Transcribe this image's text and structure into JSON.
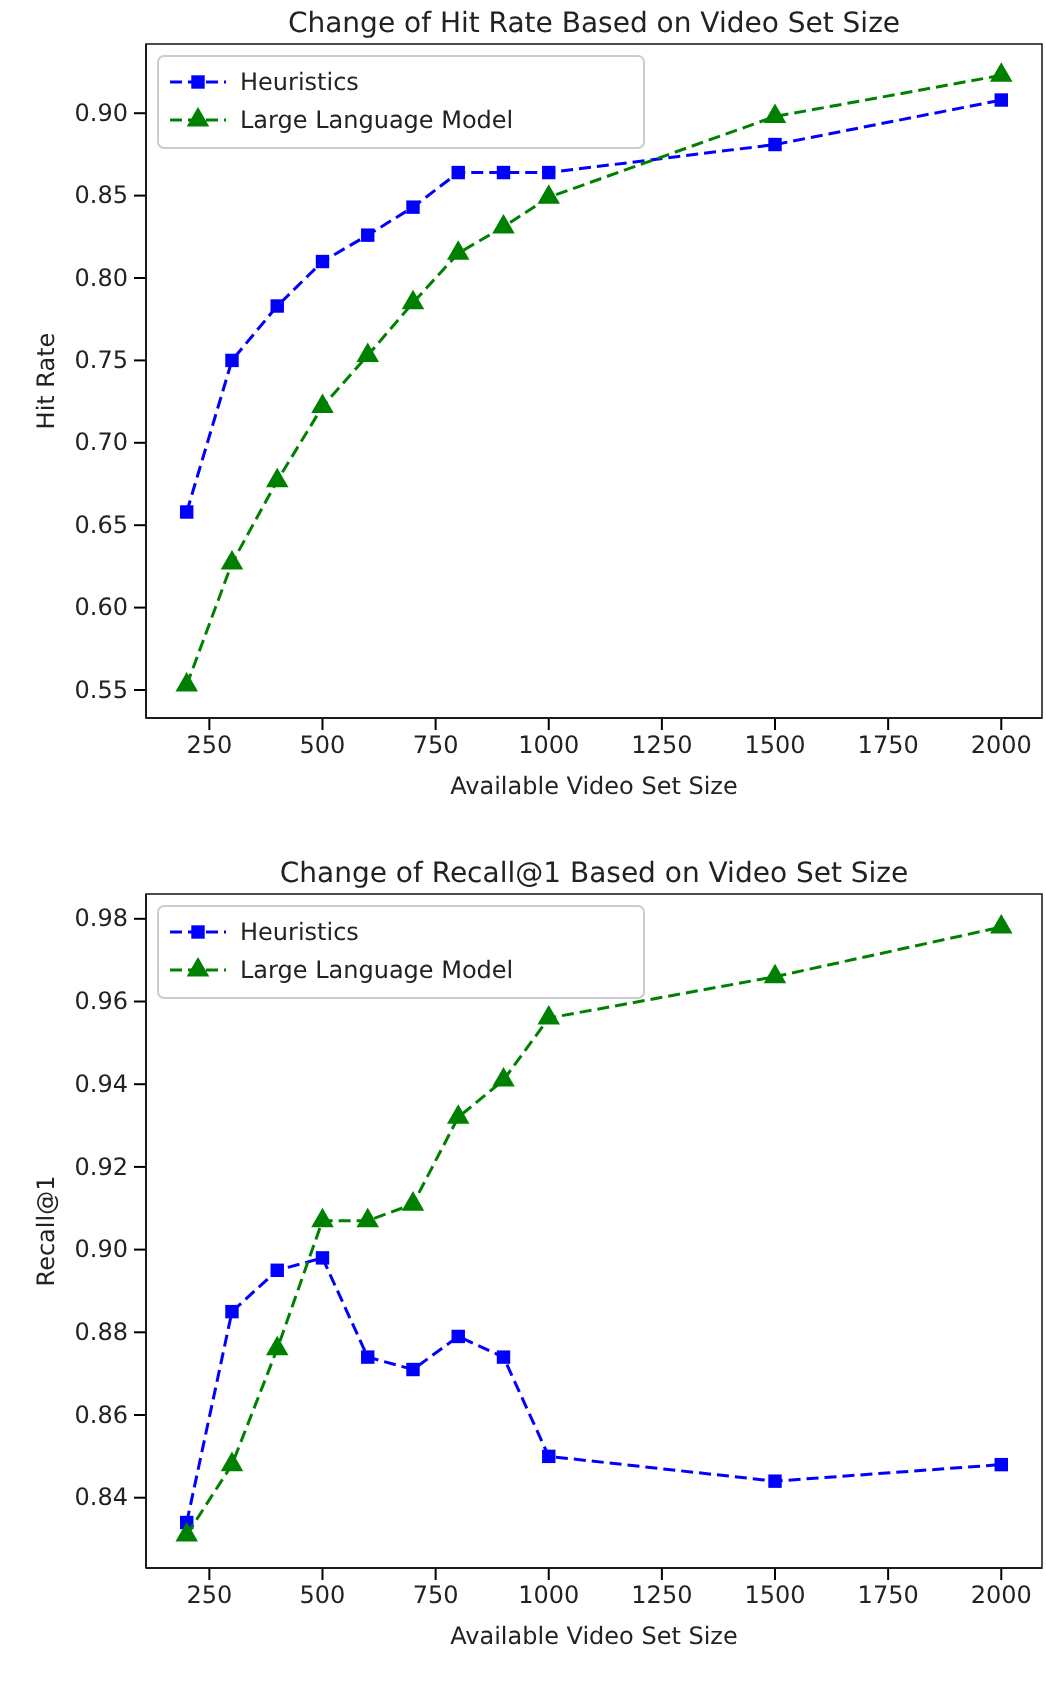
{
  "chart_data": [
    {
      "type": "line",
      "title": "Change of Hit Rate Based on Video Set Size",
      "xlabel": "Available Video Set Size",
      "ylabel": "Hit Rate",
      "x": [
        200,
        300,
        400,
        500,
        600,
        700,
        800,
        900,
        1000,
        1500,
        2000
      ],
      "series": [
        {
          "name": "Heuristics",
          "color": "#0000ff",
          "marker": "square",
          "values": [
            0.658,
            0.75,
            0.783,
            0.81,
            0.826,
            0.843,
            0.864,
            0.864,
            0.864,
            0.881,
            0.908
          ]
        },
        {
          "name": "Large Language Model",
          "color": "#008000",
          "marker": "triangle",
          "values": [
            0.553,
            0.627,
            0.677,
            0.722,
            0.753,
            0.785,
            0.815,
            0.831,
            0.849,
            0.898,
            0.923
          ]
        }
      ],
      "xlim": [
        110,
        2090
      ],
      "xticks": [
        250,
        500,
        750,
        1000,
        1250,
        1500,
        1750,
        2000
      ],
      "ylim": [
        0.533,
        0.942
      ],
      "yticks": [
        {
          "value": 0.55,
          "label": "0.55"
        },
        {
          "value": 0.6,
          "label": "0.60"
        },
        {
          "value": 0.65,
          "label": "0.65"
        },
        {
          "value": 0.7,
          "label": "0.70"
        },
        {
          "value": 0.75,
          "label": "0.75"
        },
        {
          "value": 0.8,
          "label": "0.80"
        },
        {
          "value": 0.85,
          "label": "0.85"
        },
        {
          "value": 0.9,
          "label": "0.90"
        }
      ],
      "legend": "top left",
      "line_style": "dashed",
      "grid": false
    },
    {
      "type": "line",
      "title": "Change of Recall@1 Based on Video Set Size",
      "xlabel": "Available Video Set Size",
      "ylabel": "Recall@1",
      "x": [
        200,
        300,
        400,
        500,
        600,
        700,
        800,
        900,
        1000,
        1500,
        2000
      ],
      "series": [
        {
          "name": "Heuristics",
          "color": "#0000ff",
          "marker": "square",
          "values": [
            0.834,
            0.885,
            0.895,
            0.898,
            0.874,
            0.871,
            0.879,
            0.874,
            0.85,
            0.844,
            0.848
          ]
        },
        {
          "name": "Large Language Model",
          "color": "#008000",
          "marker": "triangle",
          "values": [
            0.831,
            0.848,
            0.876,
            0.907,
            0.907,
            0.911,
            0.932,
            0.941,
            0.956,
            0.966,
            0.978
          ]
        }
      ],
      "xlim": [
        110,
        2090
      ],
      "xticks": [
        250,
        500,
        750,
        1000,
        1250,
        1500,
        1750,
        2000
      ],
      "ylim": [
        0.823,
        0.986
      ],
      "yticks": [
        {
          "value": 0.84,
          "label": "0.84"
        },
        {
          "value": 0.86,
          "label": "0.86"
        },
        {
          "value": 0.88,
          "label": "0.88"
        },
        {
          "value": 0.9,
          "label": "0.90"
        },
        {
          "value": 0.92,
          "label": "0.92"
        },
        {
          "value": 0.94,
          "label": "0.94"
        },
        {
          "value": 0.96,
          "label": "0.96"
        },
        {
          "value": 0.98,
          "label": "0.98"
        }
      ],
      "legend": "top left",
      "line_style": "dashed",
      "grid": false
    }
  ]
}
